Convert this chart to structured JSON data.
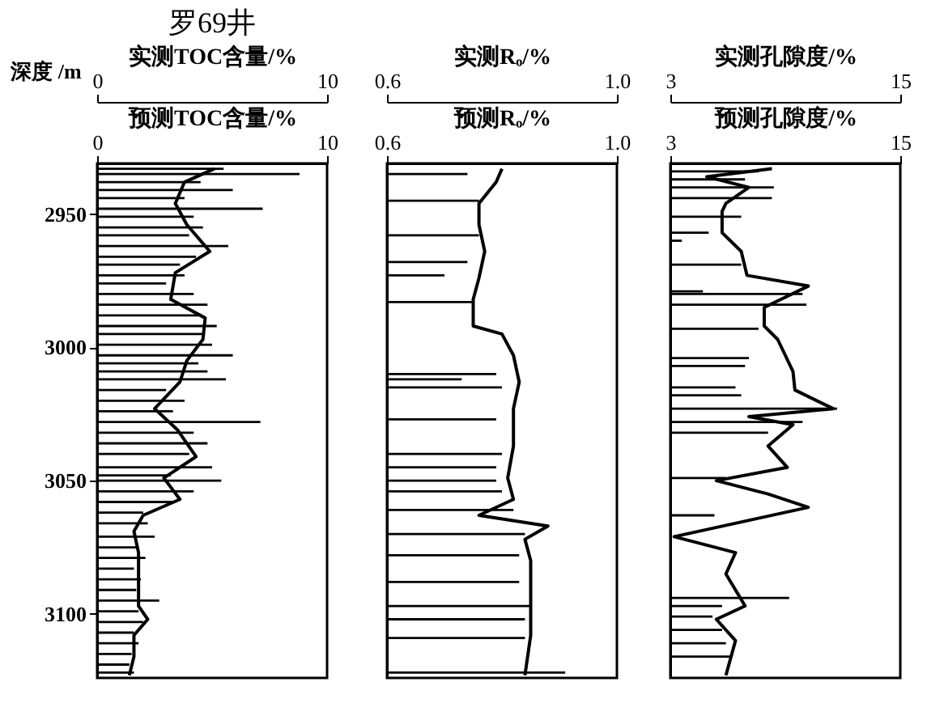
{
  "chart_data": [
    {
      "type": "bar",
      "orientation": "horizontal",
      "title": "罗69井",
      "ylabel": "深度 /m",
      "xlabel": "实测TOC含量/%",
      "x2label": "预测TOC含量/%",
      "xlim": [
        0,
        10
      ],
      "xticks": [
        0,
        10
      ],
      "x2lim": [
        0,
        10
      ],
      "x2ticks": [
        0,
        10
      ],
      "ylim": [
        3124,
        2931
      ],
      "yticks": [
        2950,
        3000,
        3050,
        3100
      ],
      "series": [
        {
          "color": "#000000",
          "x": [
            2933,
            2935,
            2938,
            2941,
            2944,
            2948,
            2951,
            2955,
            2958,
            2962,
            2966,
            2969,
            2973,
            2976,
            2980,
            2984,
            2988,
            2992,
            2995,
            2999,
            3003,
            3006,
            3009,
            3012,
            3016,
            3020,
            3024,
            3028,
            3032,
            3036,
            3040,
            3045,
            3048,
            3050,
            3054,
            3058,
            3062,
            3066,
            3071,
            3075,
            3079,
            3083,
            3087,
            3091,
            3095,
            3099,
            3103,
            3107,
            3111,
            3115,
            3119,
            3122
          ],
          "values": [
            5.5,
            8.8,
            4.5,
            5.9,
            3.8,
            7.2,
            4.2,
            4.6,
            4.0,
            5.7,
            4.3,
            3.6,
            3.8,
            3.0,
            4.2,
            4.8,
            4.4,
            5.2,
            4.6,
            5.0,
            5.9,
            4.4,
            4.8,
            5.6,
            3.0,
            3.8,
            3.3,
            7.1,
            4.2,
            4.8,
            4.0,
            5.0,
            3.2,
            5.4,
            4.2,
            3.4,
            2.0,
            2.2,
            2.5,
            1.8,
            2.1,
            1.6,
            1.9,
            1.7,
            2.7,
            1.8,
            2.0,
            1.6,
            1.8,
            1.5,
            1.4,
            1.6
          ]
        },
        {
          "type": "line",
          "axis": "x2",
          "color": "#000000",
          "x": [
            2933,
            2938,
            2946,
            2954,
            2964,
            2972,
            2982,
            2989,
            2997,
            3005,
            3013,
            3023,
            3031,
            3041,
            3049,
            3057,
            3063,
            3069,
            3077,
            3087,
            3097,
            3102,
            3108,
            3116,
            3123
          ],
          "values": [
            5.1,
            3.8,
            3.4,
            3.9,
            4.9,
            3.4,
            3.2,
            4.7,
            4.6,
            3.9,
            3.6,
            2.5,
            3.5,
            4.3,
            2.9,
            3.6,
            2.0,
            1.6,
            1.8,
            1.8,
            1.8,
            2.2,
            1.6,
            1.6,
            1.4
          ]
        }
      ]
    },
    {
      "type": "bar",
      "orientation": "horizontal",
      "xlabel": "实测Rₒ/%",
      "x2label": "预测Rₒ/%",
      "xlim": [
        0.6,
        1.0
      ],
      "xticks": [
        {
          "value": 0.6,
          "label": "0.6"
        },
        {
          "value": 1.0,
          "label": "1.0"
        }
      ],
      "x2lim": [
        0.6,
        1.0
      ],
      "x2ticks": [
        {
          "value": 0.6,
          "label": "0.6"
        },
        {
          "value": 1.0,
          "label": "1.0"
        }
      ],
      "ylim": [
        3124,
        2931
      ],
      "yticks": [
        2950,
        3000,
        3050,
        3100
      ],
      "tick_labels": "x",
      "series": [
        {
          "color": "#000000",
          "x": [
            2935,
            2945,
            2958,
            2968,
            2973,
            2983,
            3010,
            3012,
            3015,
            3027,
            3040,
            3045,
            3050,
            3054,
            3061,
            3070,
            3078,
            3088,
            3097,
            3102,
            3109,
            3122
          ],
          "values": [
            0.74,
            0.76,
            0.76,
            0.74,
            0.7,
            0.75,
            0.79,
            0.73,
            0.8,
            0.79,
            0.8,
            0.79,
            0.79,
            0.8,
            0.82,
            0.84,
            0.83,
            0.83,
            0.85,
            0.84,
            0.84,
            0.91
          ]
        },
        {
          "type": "line",
          "axis": "x2",
          "color": "#000000",
          "x": [
            2933,
            2938,
            2946,
            2954,
            2964,
            2974,
            2982,
            2992,
            2995,
            3003,
            3013,
            3023,
            3028,
            3037,
            3049,
            3057,
            3063,
            3067,
            3072,
            3080,
            3097,
            3108,
            3123
          ],
          "values": [
            0.8,
            0.79,
            0.76,
            0.76,
            0.77,
            0.76,
            0.75,
            0.75,
            0.8,
            0.82,
            0.83,
            0.82,
            0.82,
            0.82,
            0.81,
            0.82,
            0.76,
            0.88,
            0.84,
            0.85,
            0.85,
            0.85,
            0.84
          ]
        }
      ]
    },
    {
      "type": "bar",
      "orientation": "horizontal",
      "xlabel": "实测孔隙度/%",
      "x2label": "预测孔隙度/%",
      "xlim": [
        3,
        15
      ],
      "xticks": [
        3,
        15
      ],
      "x2lim": [
        3,
        15
      ],
      "x2ticks": [
        3,
        15
      ],
      "ylim": [
        3124,
        2931
      ],
      "yticks": [
        2950,
        3000,
        3050,
        3100
      ],
      "tick_labels": "x",
      "series": [
        {
          "color": "#000000",
          "x": [
            2934,
            2937,
            2940,
            2944,
            2951,
            2957,
            2960,
            2969,
            2979,
            2980,
            2984,
            2993,
            3004,
            3007,
            3015,
            3018,
            3023,
            3028,
            3032,
            3049,
            3063,
            3094,
            3097,
            3101,
            3106,
            3111,
            3116
          ],
          "values": [
            7.6,
            6.9,
            8.4,
            8.3,
            6.7,
            5.0,
            3.6,
            6.7,
            4.7,
            9.9,
            10.1,
            7.6,
            7.1,
            6.9,
            6.4,
            6.7,
            11.7,
            9.9,
            8.1,
            5.9,
            5.3,
            9.2,
            5.7,
            5.2,
            5.7,
            5.9,
            6.2
          ]
        },
        {
          "type": "line",
          "axis": "x2",
          "color": "#000000",
          "x": [
            2933,
            2936,
            2940,
            2946,
            2949,
            2957,
            2964,
            2973,
            2977,
            2985,
            2992,
            2997,
            3009,
            3016,
            3023,
            3026,
            3029,
            3037,
            3045,
            3050,
            3055,
            3060,
            3071,
            3077,
            3085,
            3097,
            3102,
            3110,
            3123
          ],
          "values": [
            8.3,
            4.9,
            7.1,
            5.9,
            5.7,
            5.7,
            6.7,
            7.0,
            10.2,
            7.9,
            7.9,
            8.6,
            9.4,
            9.5,
            11.5,
            7.1,
            9.4,
            8.1,
            9.1,
            5.4,
            8.1,
            10.2,
            3.2,
            6.4,
            5.9,
            6.9,
            5.4,
            6.4,
            5.9
          ]
        }
      ]
    }
  ]
}
